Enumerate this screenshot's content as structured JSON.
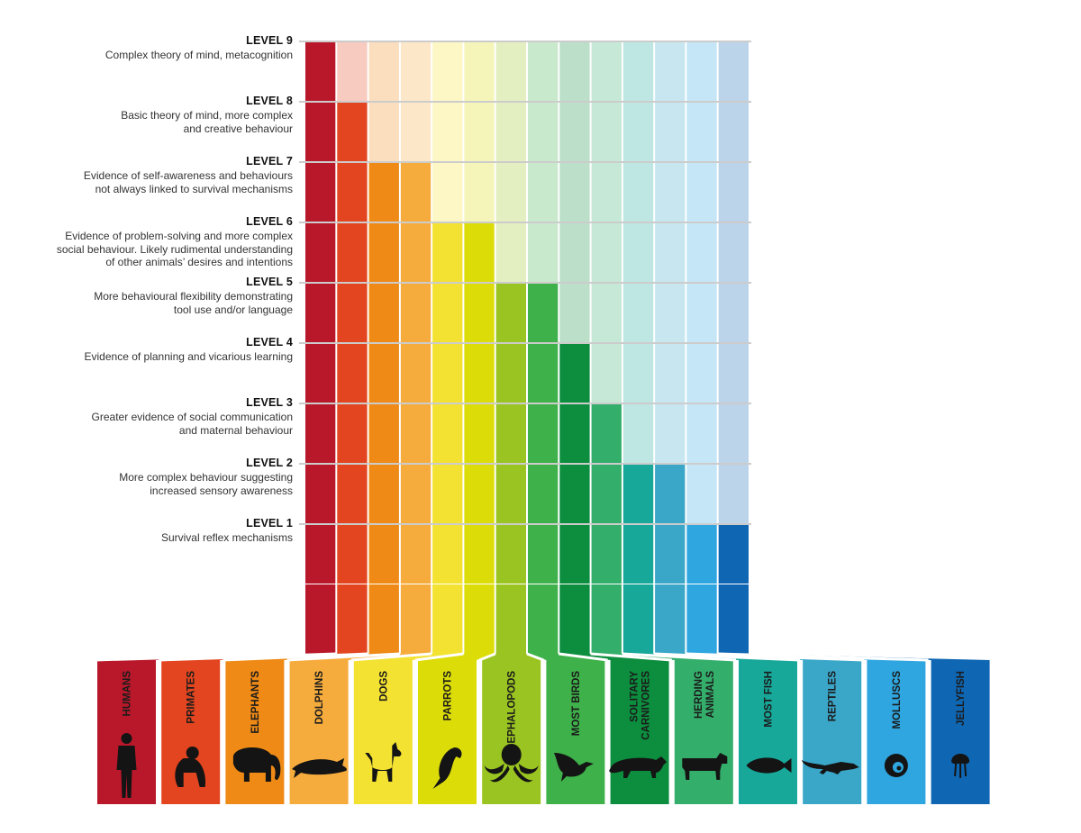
{
  "levels": [
    {
      "title": "LEVEL 9",
      "desc": [
        "Complex theory of mind, metacognition"
      ]
    },
    {
      "title": "LEVEL 8",
      "desc": [
        "Basic theory of mind, more complex",
        "and creative behaviour"
      ]
    },
    {
      "title": "LEVEL 7",
      "desc": [
        "Evidence of self-awareness and behaviours",
        "not always linked to survival mechanisms"
      ]
    },
    {
      "title": "LEVEL 6",
      "desc": [
        "Evidence of problem-solving and more complex",
        "social behaviour. Likely rudimental understanding",
        "of other animals’ desires and intentions"
      ]
    },
    {
      "title": "LEVEL 5",
      "desc": [
        "More behavioural flexibility demonstrating",
        "tool use and/or language"
      ]
    },
    {
      "title": "LEVEL 4",
      "desc": [
        "Evidence of planning and vicarious learning"
      ]
    },
    {
      "title": "LEVEL 3",
      "desc": [
        "Greater evidence of social communication",
        "and maternal behaviour"
      ]
    },
    {
      "title": "LEVEL 2",
      "desc": [
        "More complex behaviour suggesting",
        "increased sensory awareness"
      ]
    },
    {
      "title": "LEVEL 1",
      "desc": [
        "Survival reflex mechanisms"
      ]
    }
  ],
  "animals": [
    {
      "label": [
        "HUMANS"
      ],
      "level": 9,
      "color": "#b8182a",
      "icon": "human-silhouette-icon"
    },
    {
      "label": [
        "PRIMATES"
      ],
      "level": 8,
      "color": "#e2451f",
      "icon": "primate-silhouette-icon"
    },
    {
      "label": [
        "ELEPHANTS"
      ],
      "level": 7,
      "color": "#ee8a15",
      "icon": "elephant-silhouette-icon"
    },
    {
      "label": [
        "DOLPHINS"
      ],
      "level": 7,
      "color": "#f6ac3c",
      "icon": "dolphin-silhouette-icon"
    },
    {
      "label": [
        "DOGS"
      ],
      "level": 6,
      "color": "#f3e231",
      "icon": "dog-silhouette-icon"
    },
    {
      "label": [
        "PARROTS"
      ],
      "level": 6,
      "color": "#dcdd08",
      "icon": "parrot-silhouette-icon"
    },
    {
      "label": [
        "CEPHALOPODS"
      ],
      "level": 5,
      "color": "#9ac421",
      "icon": "octopus-silhouette-icon"
    },
    {
      "label": [
        "MOST BIRDS"
      ],
      "level": 5,
      "color": "#3fb14a",
      "icon": "bird-silhouette-icon"
    },
    {
      "label": [
        "SOLITARY",
        "CARNIVORES"
      ],
      "level": 4,
      "color": "#0c8e3e",
      "icon": "panther-silhouette-icon"
    },
    {
      "label": [
        "HERDING",
        "ANIMALS"
      ],
      "level": 3,
      "color": "#34ae6b",
      "icon": "cow-silhouette-icon"
    },
    {
      "label": [
        "MOST FISH"
      ],
      "level": 2,
      "color": "#17a89a",
      "icon": "fish-silhouette-icon"
    },
    {
      "label": [
        "REPTILES"
      ],
      "level": 2,
      "color": "#3aa6c8",
      "icon": "lizard-silhouette-icon"
    },
    {
      "label": [
        "MOLLUSCS"
      ],
      "level": 1,
      "color": "#2fa6e0",
      "icon": "snail-silhouette-icon"
    },
    {
      "label": [
        "JELLYFISH"
      ],
      "level": 1,
      "color": "#0f66b3",
      "icon": "jellyfish-silhouette-icon"
    }
  ]
}
